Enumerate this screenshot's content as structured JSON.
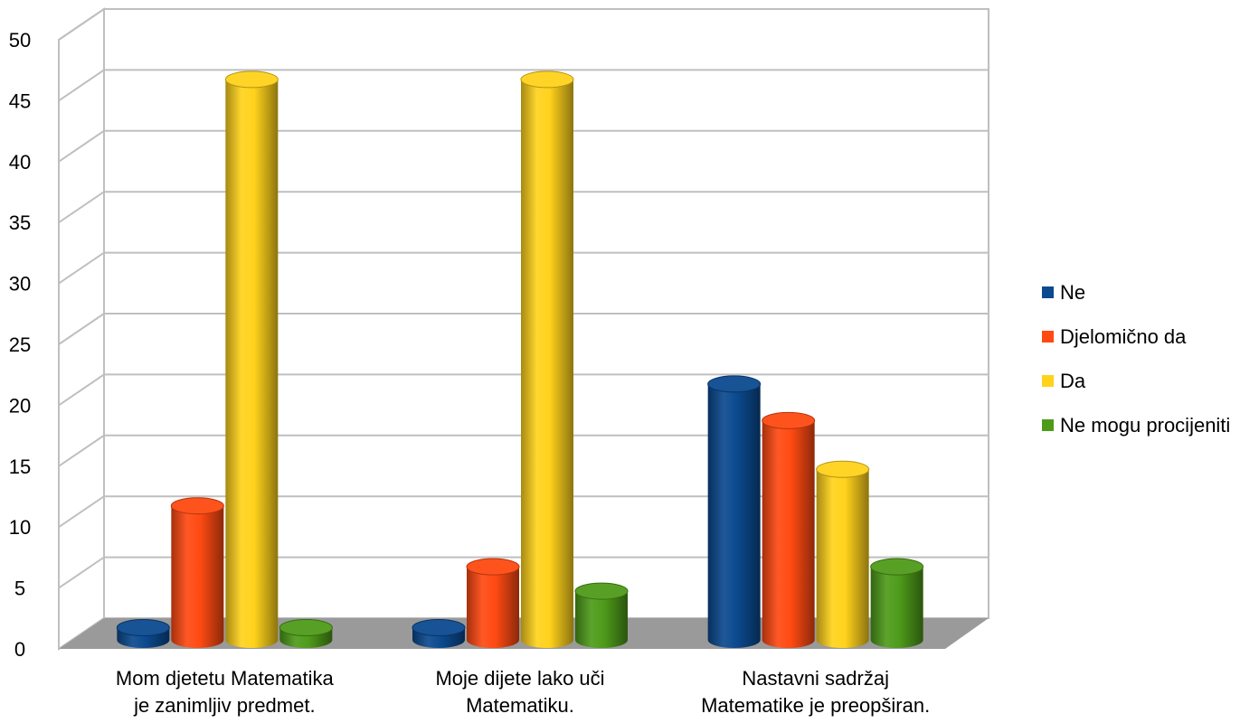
{
  "chart_data": {
    "type": "bar",
    "categories": [
      [
        "Mom djetetu Matematika",
        "je zanimljiv predmet."
      ],
      [
        "Moje dijete lako uči",
        "Matematiku."
      ],
      [
        "Nastavni sadržaj",
        "Matematike je preopširan."
      ]
    ],
    "series": [
      {
        "name": "Ne",
        "color": "#0b4a8f",
        "values": [
          1,
          1,
          21
        ]
      },
      {
        "name": "Djelomično da",
        "color": "#ff4a12",
        "values": [
          11,
          6,
          18
        ]
      },
      {
        "name": "Da",
        "color": "#ffd21c",
        "values": [
          46,
          46,
          14
        ]
      },
      {
        "name": "Ne mogu procijeniti",
        "color": "#4e9b1a",
        "values": [
          1,
          4,
          6
        ]
      }
    ],
    "yticks": [
      "0",
      "5",
      "10",
      "15",
      "20",
      "25",
      "30",
      "35",
      "40",
      "45",
      "50"
    ],
    "ylim": [
      0,
      50
    ],
    "grid": true,
    "legend_position": "right",
    "title": "",
    "xlabel": "",
    "ylabel": ""
  }
}
